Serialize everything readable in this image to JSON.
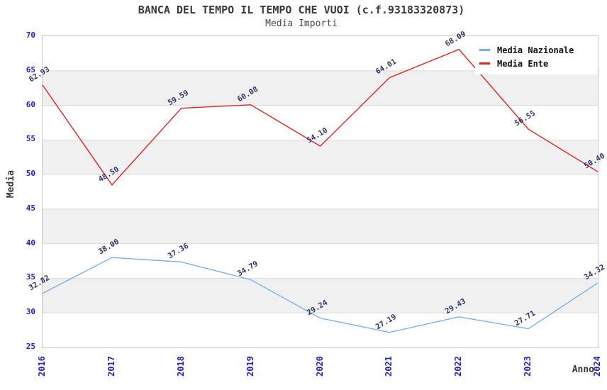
{
  "header": {
    "title": "BANCA DEL TEMPO IL TEMPO CHE VUOI (c.f.93183320873)",
    "subtitle": "Media Importi"
  },
  "axes": {
    "y_title": "Media",
    "x_title": "Anno",
    "y_ticks": [
      25,
      30,
      35,
      40,
      45,
      50,
      55,
      60,
      65,
      70
    ]
  },
  "chart_data": {
    "type": "line",
    "title": "BANCA DEL TEMPO IL TEMPO CHE VUOI (c.f.93183320873)",
    "subtitle": "Media Importi",
    "xlabel": "Anno",
    "ylabel": "Media",
    "categories": [
      "2016",
      "2017",
      "2018",
      "2019",
      "2020",
      "2021",
      "2022",
      "2023",
      "2024"
    ],
    "series": [
      {
        "name": "Media Nazionale",
        "color": "#7cb0e3",
        "values": [
          32.82,
          38.0,
          37.36,
          34.79,
          29.24,
          27.19,
          29.43,
          27.71,
          34.32
        ]
      },
      {
        "name": "Media Ente",
        "color": "#e62222",
        "values": [
          62.93,
          48.5,
          59.59,
          60.08,
          54.1,
          64.01,
          68.09,
          56.55,
          50.4
        ]
      }
    ],
    "ylim": [
      25,
      70
    ],
    "y_tick_step": 5,
    "grid": true,
    "striped_bands": true,
    "legend_position": "top-right",
    "data_label_decimals": 2
  },
  "colors": {
    "axis_tick_text": "#2222cc",
    "data_label_text": "#333366",
    "stripe_fill": "#f0f0f0",
    "gridline": "#dcdcdc",
    "plot_border": "#c9c9c9",
    "title_text": "#3a3a3a",
    "legend_text": "#111111"
  }
}
